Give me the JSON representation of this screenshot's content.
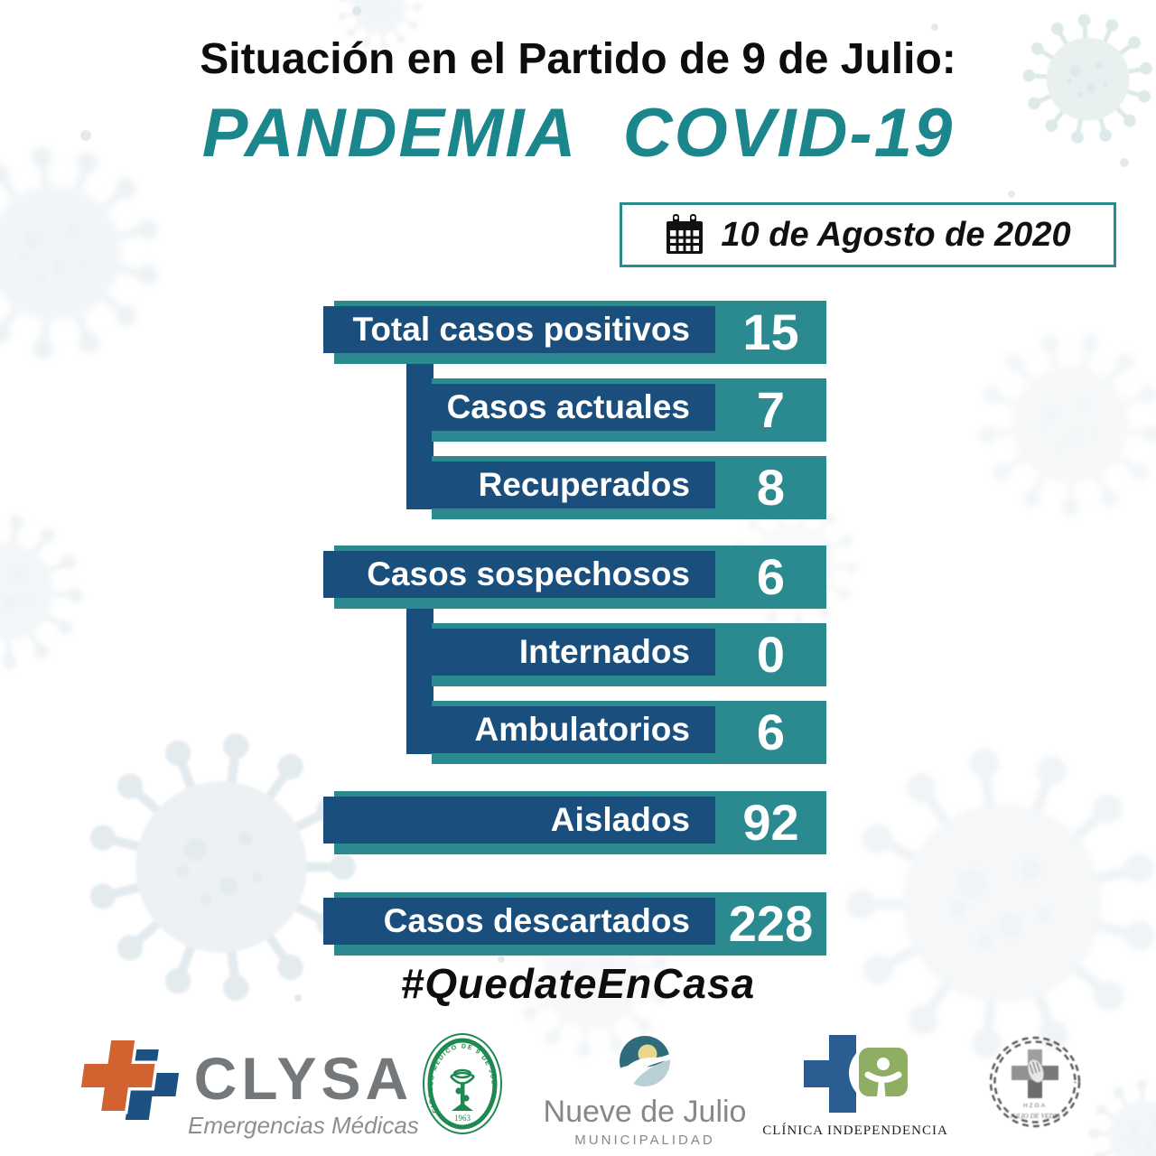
{
  "page": {
    "title_line1": "Situación en el Partido de 9 de Julio:",
    "title_line2": "PANDEMIA COVID-19",
    "hashtag": "#QuedateEnCasa"
  },
  "date_box": {
    "icon": "calendar-icon",
    "date": "10 de Agosto de 2020"
  },
  "chart_data": {
    "type": "table",
    "title": "Situación en el Partido de 9 de Julio: PANDEMIA COVID-19",
    "date": "10 de Agosto de 2020",
    "categories": [
      "Total casos positivos",
      "Casos actuales",
      "Recuperados",
      "Casos sospechosos",
      "Internados",
      "Ambulatorios",
      "Aislados",
      "Casos descartados"
    ],
    "values": [
      15,
      7,
      8,
      6,
      0,
      6,
      92,
      228
    ],
    "rows": [
      {
        "label": "Total casos positivos",
        "value": "15",
        "indent": false
      },
      {
        "label": "Casos actuales",
        "value": "7",
        "indent": true
      },
      {
        "label": "Recuperados",
        "value": "8",
        "indent": true
      },
      {
        "label": "Casos sospechosos",
        "value": "6",
        "indent": false
      },
      {
        "label": "Internados",
        "value": "0",
        "indent": true
      },
      {
        "label": "Ambulatorios",
        "value": "6",
        "indent": true
      },
      {
        "label": "Aislados",
        "value": "92",
        "indent": false
      },
      {
        "label": "Casos descartados",
        "value": "228",
        "indent": false
      }
    ]
  },
  "colors": {
    "teal_bar": "#2b8a90",
    "dark_blue_bar": "#1a4e7d",
    "title_teal": "#1b868c",
    "clysa_orange": "#d2622f",
    "clysa_blue": "#1c5181",
    "circulo_green": "#1e8a4f",
    "ndj_dark_teal": "#2e6b7d",
    "ndj_sun": "#e9d78e",
    "clinica_blue": "#2b5c92",
    "clinica_green": "#8fae63"
  },
  "footer": {
    "clysa": {
      "word": "CLYSA",
      "subtitle": "Emergencias Médicas"
    },
    "circulo": {
      "ring_text": "CIRCULO MEDICO DE 9 DE JULIO",
      "year": "1963"
    },
    "nueve_de_julio": {
      "name": "Nueve de Julio",
      "subtitle": "MUNICIPALIDAD"
    },
    "clinica": {
      "name": "CLÍNICA  INDEPENDENCIA"
    },
    "stamp": {
      "line1": "HZGA",
      "line2": "JULIO DE VEDIA"
    }
  }
}
